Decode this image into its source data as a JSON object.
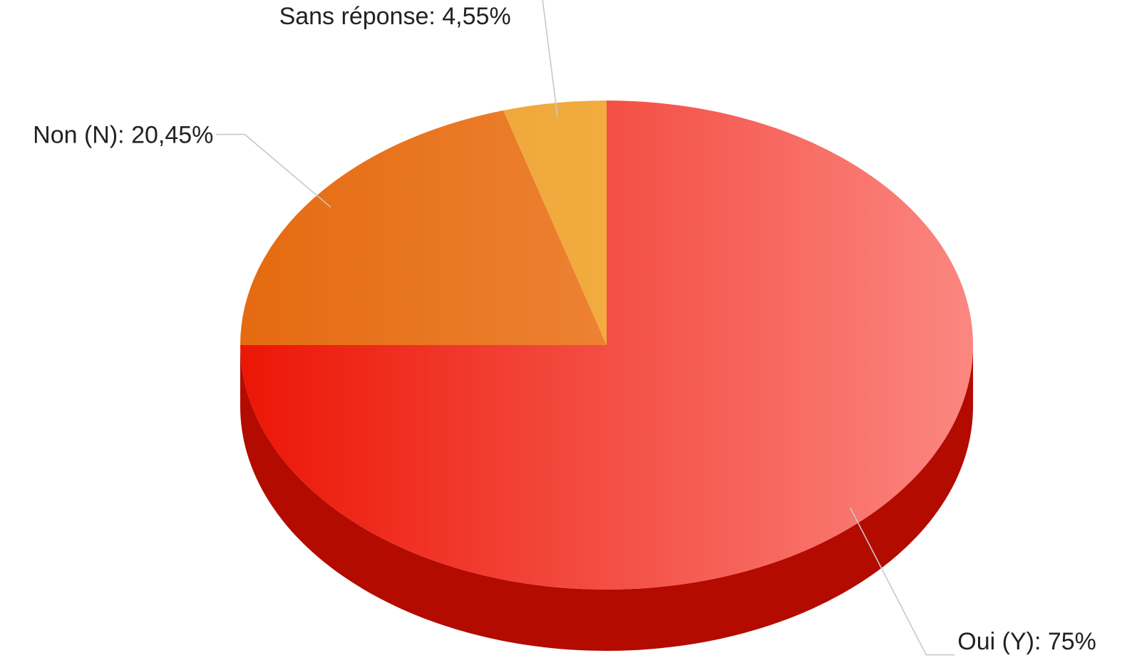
{
  "chart_data": {
    "type": "pie",
    "style": "3d",
    "title": "",
    "slices": [
      {
        "name": "Oui (Y)",
        "value": 75,
        "label": "Oui (Y): 75%",
        "color": "#f45b5b",
        "colorDark": "#ec1606",
        "colorLight": "#fb8781",
        "sideColor": "#b30b00"
      },
      {
        "name": "Non (N)",
        "value": 20.45,
        "label": "Non (N): 20,45%",
        "color": "#f08437",
        "colorDark": "#e56a10",
        "colorLight": "#f39a55",
        "sideColor": "#b75a0f"
      },
      {
        "name": "Sans réponse",
        "value": 4.55,
        "label": "Sans réponse: 4,55%",
        "color": "#f1aa3a",
        "colorDark": "#eea232",
        "colorLight": "#f4b44c",
        "sideColor": "#c27f1a"
      }
    ],
    "start_angle_deg": 0,
    "direction": "clockwise",
    "legend": "none",
    "label_style": "outside-with-leader-lines"
  }
}
